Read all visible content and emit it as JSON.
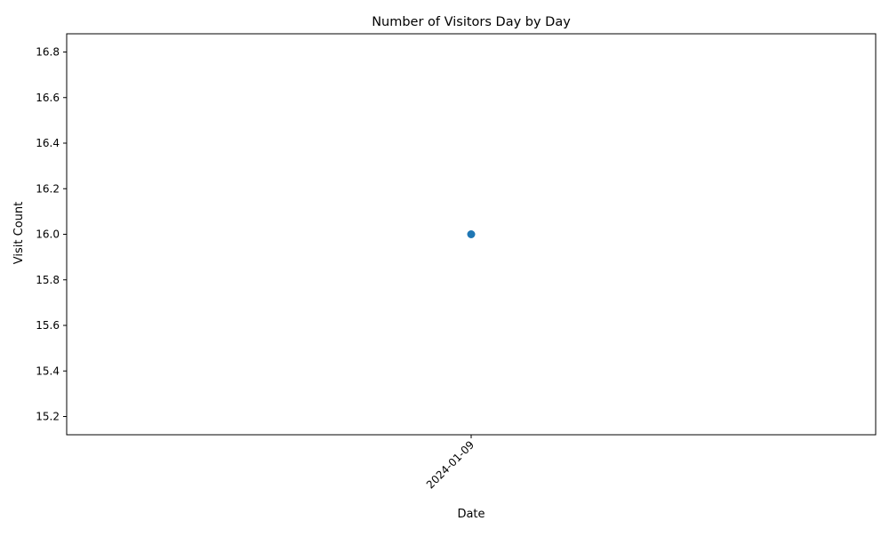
{
  "chart_data": {
    "type": "line",
    "title": "Number of Visitors Day by Day",
    "xlabel": "Date",
    "ylabel": "Visit Count",
    "categories": [
      "2024-01-09"
    ],
    "series": [
      {
        "values": [
          16
        ],
        "color": "#1f77b4",
        "marker": "circle"
      }
    ],
    "ylim": [
      15.12,
      16.88
    ],
    "yticks": [
      "15.2",
      "15.4",
      "15.6",
      "15.8",
      "16.0",
      "16.2",
      "16.4",
      "16.6",
      "16.8"
    ],
    "xtick_rotation": 45,
    "grid": false,
    "legend": "none"
  }
}
